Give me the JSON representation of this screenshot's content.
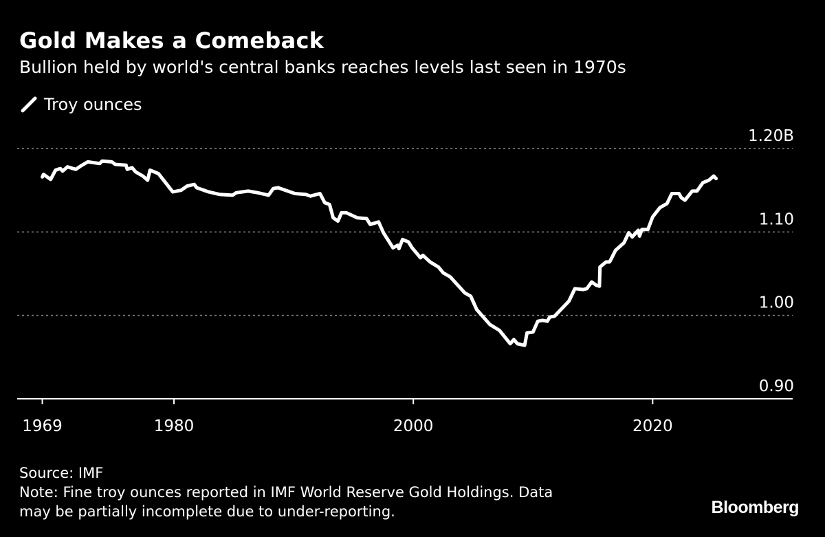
{
  "chart_data": {
    "type": "line",
    "title": "Gold Makes a Comeback",
    "subtitle": "Bullion held by world's central banks reaches levels last seen in 1970s",
    "series": [
      {
        "name": "Troy ounces",
        "color": "#ffffff",
        "x": [
          1969.0,
          1969.1,
          1969.7,
          1970.1,
          1970.5,
          1970.7,
          1971.1,
          1971.8,
          1972.2,
          1972.8,
          1973.8,
          1974.0,
          1974.8,
          1975.1,
          1976.0,
          1976.1,
          1976.5,
          1976.8,
          1977.4,
          1977.8,
          1978.0,
          1978.7,
          1979.9,
          1980.6,
          1981.1,
          1981.7,
          1981.9,
          1982.9,
          1983.8,
          1984.9,
          1985.2,
          1986.2,
          1987.0,
          1987.9,
          1988.3,
          1988.7,
          1990.1,
          1991.0,
          1991.4,
          1992.2,
          1992.6,
          1993.0,
          1993.3,
          1993.7,
          1994.0,
          1994.4,
          1995.3,
          1996.1,
          1996.4,
          1997.1,
          1997.5,
          1998.3,
          1998.7,
          1998.8,
          1999.1,
          1999.6,
          1999.9,
          2000.6,
          2000.8,
          2001.4,
          2002.1,
          2002.5,
          2003.1,
          2004.3,
          2004.8,
          2005.3,
          2006.4,
          2007.2,
          2008.1,
          2008.4,
          2008.7,
          2009.3,
          2009.5,
          2010.0,
          2010.4,
          2010.8,
          2011.2,
          2011.4,
          2011.8,
          2013.0,
          2013.5,
          2014.2,
          2014.5,
          2014.9,
          2015.3,
          2015.55,
          2015.6,
          2016.1,
          2016.4,
          2016.9,
          2017.6,
          2018.0,
          2018.3,
          2018.8,
          2018.9,
          2019.1,
          2019.6,
          2020.0,
          2020.6,
          2021.2,
          2021.6,
          2022.2,
          2022.4,
          2022.7,
          2023.3,
          2023.7,
          2024.2,
          2024.7,
          2025.1,
          2025.3
        ],
        "values": [
          1.166,
          1.169,
          1.163,
          1.174,
          1.176,
          1.173,
          1.178,
          1.175,
          1.179,
          1.184,
          1.182,
          1.185,
          1.184,
          1.181,
          1.18,
          1.175,
          1.177,
          1.172,
          1.167,
          1.162,
          1.174,
          1.17,
          1.148,
          1.15,
          1.155,
          1.157,
          1.153,
          1.148,
          1.145,
          1.144,
          1.147,
          1.149,
          1.147,
          1.144,
          1.152,
          1.153,
          1.146,
          1.145,
          1.143,
          1.146,
          1.135,
          1.133,
          1.117,
          1.113,
          1.123,
          1.123,
          1.117,
          1.116,
          1.109,
          1.112,
          1.099,
          1.081,
          1.084,
          1.08,
          1.091,
          1.088,
          1.081,
          1.069,
          1.072,
          1.064,
          1.058,
          1.051,
          1.046,
          1.027,
          1.023,
          1.007,
          0.989,
          0.982,
          0.966,
          0.971,
          0.966,
          0.964,
          0.979,
          0.98,
          0.993,
          0.994,
          0.993,
          0.998,
          0.999,
          1.017,
          1.032,
          1.031,
          1.032,
          1.04,
          1.036,
          1.035,
          1.058,
          1.064,
          1.064,
          1.078,
          1.087,
          1.099,
          1.094,
          1.102,
          1.095,
          1.103,
          1.103,
          1.118,
          1.129,
          1.134,
          1.146,
          1.146,
          1.141,
          1.138,
          1.149,
          1.149,
          1.159,
          1.162,
          1.167,
          1.164
        ]
      }
    ],
    "xlim": [
      1966.9,
      2031.7
    ],
    "ylim": [
      0.9,
      1.2
    ],
    "xticks": [
      {
        "value": 1969,
        "label": "1969"
      },
      {
        "value": 1980,
        "label": "1980"
      },
      {
        "value": 2000,
        "label": "2000"
      },
      {
        "value": 2020,
        "label": "2020"
      }
    ],
    "yticks": [
      {
        "value": 1.2,
        "label": "1.20B"
      },
      {
        "value": 1.1,
        "label": "1.10"
      },
      {
        "value": 1.0,
        "label": "1.00"
      },
      {
        "value": 0.9,
        "label": "0.90"
      }
    ],
    "grid": "horizontal dotted",
    "legend_placement": "top-left",
    "background": "#000000",
    "grid_color": "#8c8c8c"
  },
  "footer": {
    "source": "Source: IMF",
    "note_line1": "Note: Fine troy ounces reported in IMF World Reserve Gold Holdings. Data",
    "note_line2": "may be partially incomplete due to under-reporting."
  },
  "brand": "Bloomberg"
}
